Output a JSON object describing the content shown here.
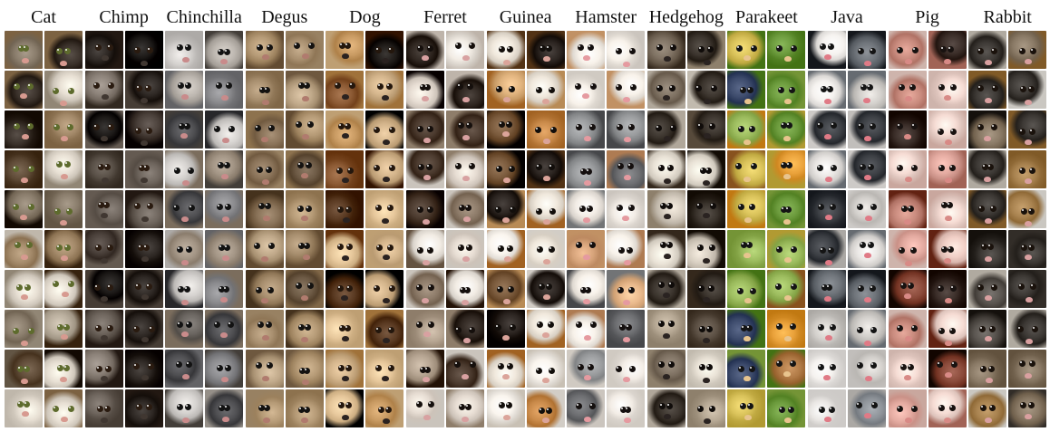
{
  "figure": {
    "columns": [
      {
        "label": "Cat",
        "fur": [
          "#8a7d6c",
          "#b9ae9d",
          "#5e4a36",
          "#e7dfd3",
          "#3a312a",
          "#a48a6a"
        ],
        "nose": "#d79a90",
        "eye": "#5e6b2d"
      },
      {
        "label": "Chimp",
        "fur": [
          "#2d2723",
          "#4a403a",
          "#6e655d",
          "#1c1917",
          "#8c8279",
          "#595047"
        ],
        "nose": "#403731",
        "eye": "#2a1b10"
      },
      {
        "label": "Chinchilla",
        "fur": [
          "#4f4f52",
          "#8b8b8e",
          "#a39585",
          "#d5d2cf",
          "#6b6661",
          "#bdb7b0"
        ],
        "nose": "#c98b8b",
        "eye": "#121212"
      },
      {
        "label": "Degus",
        "fur": [
          "#8a7359",
          "#a88f6f",
          "#6d5a45",
          "#c0a98a",
          "#968067",
          "#b59a76"
        ],
        "nose": "#b07b6e",
        "eye": "#141210"
      },
      {
        "label": "Dog",
        "fur": [
          "#1e1a17",
          "#c89a62",
          "#5a3a22",
          "#e6c79b",
          "#8c5a34",
          "#d3b48b"
        ],
        "nose": "#2a2220",
        "eye": "#24170d"
      },
      {
        "label": "Ferret",
        "fur": [
          "#e6dcd2",
          "#4b3a2e",
          "#8c7a68",
          "#f2ece4",
          "#2f2620",
          "#b6a592"
        ],
        "nose": "#d8a1a1",
        "eye": "#150f0c"
      },
      {
        "label": "Guinea",
        "fur": [
          "#f0e8dc",
          "#c98a4a",
          "#2b2420",
          "#e0b37e",
          "#7a5a3c",
          "#faf5ee"
        ],
        "nose": "#dba49a",
        "eye": "#120e0b"
      },
      {
        "label": "Hamster",
        "fur": [
          "#e9b98c",
          "#f3ede6",
          "#9a9c9e",
          "#d6a37a",
          "#6e6f72",
          "#f8f2ea"
        ],
        "nose": "#e59aa0",
        "eye": "#140f0e"
      },
      {
        "label": "Hedgehog",
        "fur": [
          "#5c5044",
          "#e9e2d6",
          "#3a332c",
          "#b6a894",
          "#7f7263",
          "#d8cfc2"
        ],
        "nose": "#2a2321",
        "eye": "#100c0a"
      },
      {
        "label": "Parakeet",
        "fur": [
          "#d9c25a",
          "#6b9a3c",
          "#3c4a6b",
          "#e9a13a",
          "#9cbc5e",
          "#b07a46"
        ],
        "nose": "#e8c48e",
        "eye": "#141414"
      },
      {
        "label": "Java",
        "fur": [
          "#6f747a",
          "#e9e6e3",
          "#3c3f44",
          "#d3d0cc",
          "#8e9399",
          "#f5f2ef"
        ],
        "nose": "#e07a86",
        "eye": "#141414"
      },
      {
        "label": "Pig",
        "fur": [
          "#e3aaa0",
          "#f1cfc6",
          "#3a2d28",
          "#c98b7e",
          "#8a4a3a",
          "#f6dcd4"
        ],
        "nose": "#d88a86",
        "eye": "#181210"
      },
      {
        "label": "Rabbit",
        "fur": [
          "#a8824f",
          "#d8d2c8",
          "#5a5550",
          "#f2efe9",
          "#8a7a66",
          "#3c3834"
        ],
        "nose": "#d9a0a0",
        "eye": "#1a120c"
      }
    ]
  }
}
